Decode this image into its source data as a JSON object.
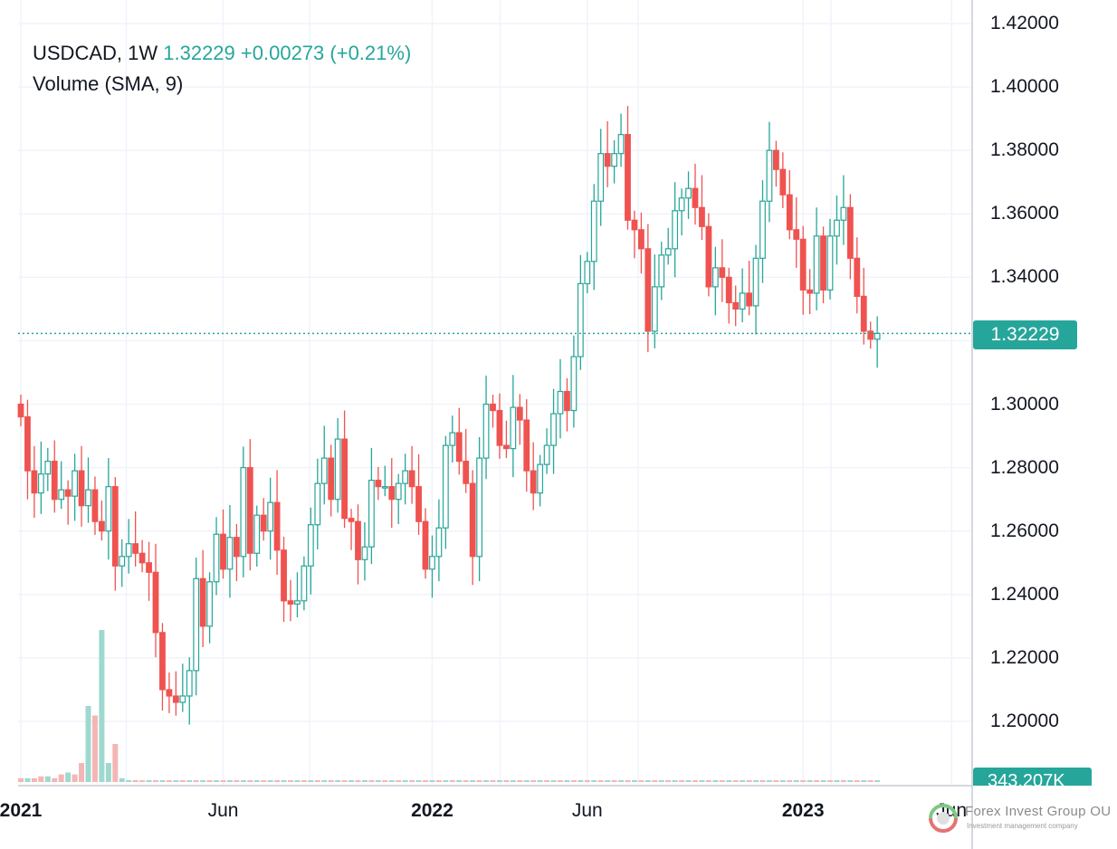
{
  "legend": {
    "symbol": "USDCAD, 1W",
    "last": "1.32229",
    "change": "+0.00273 (+0.21%)",
    "volume_label": "Volume (SMA, 9)"
  },
  "price_badge": "1.32229",
  "volume_badge": "343.207K",
  "watermark": {
    "name": "Forex Invest Group OU",
    "tagline": "Investment management company"
  },
  "colors": {
    "up": "#26a69a",
    "down": "#ef5350",
    "grid": "#f0f3fa",
    "axis": "#787b86"
  },
  "chart_data": {
    "type": "candlestick",
    "title": "USDCAD, 1W",
    "ylim": [
      1.185,
      1.42
    ],
    "yticks": [
      "1.42000",
      "1.40000",
      "1.38000",
      "1.36000",
      "1.34000",
      "1.32000",
      "1.30000",
      "1.28000",
      "1.26000",
      "1.24000",
      "1.22000",
      "1.20000"
    ],
    "ytick_values": [
      1.42,
      1.4,
      1.38,
      1.36,
      1.34,
      1.32,
      1.3,
      1.28,
      1.26,
      1.24,
      1.22,
      1.2
    ],
    "xticks": [
      {
        "label": "2021",
        "week": 0,
        "bold": true
      },
      {
        "label": "Jun",
        "week": 30,
        "bold": false
      },
      {
        "label": "2022",
        "week": 61,
        "bold": true
      },
      {
        "label": "Jun",
        "week": 84,
        "bold": false
      },
      {
        "label": "2023",
        "week": 116,
        "bold": true
      },
      {
        "label": "Jun",
        "week": 138,
        "bold": false
      }
    ],
    "last_price": 1.32229,
    "closes": [
      1.296,
      1.279,
      1.272,
      1.278,
      1.282,
      1.27,
      1.273,
      1.271,
      1.279,
      1.268,
      1.273,
      1.263,
      1.26,
      1.274,
      1.249,
      1.252,
      1.256,
      1.253,
      1.25,
      1.247,
      1.228,
      1.21,
      1.208,
      1.206,
      1.208,
      1.216,
      1.245,
      1.23,
      1.244,
      1.259,
      1.248,
      1.258,
      1.252,
      1.28,
      1.253,
      1.265,
      1.26,
      1.269,
      1.254,
      1.238,
      1.237,
      1.238,
      1.249,
      1.262,
      1.275,
      1.283,
      1.27,
      1.289,
      1.264,
      1.263,
      1.251,
      1.255,
      1.276,
      1.274,
      1.274,
      1.27,
      1.275,
      1.279,
      1.274,
      1.263,
      1.248,
      1.252,
      1.261,
      1.287,
      1.291,
      1.282,
      1.275,
      1.252,
      1.283,
      1.3,
      1.298,
      1.287,
      1.286,
      1.299,
      1.295,
      1.279,
      1.272,
      1.281,
      1.287,
      1.297,
      1.304,
      1.298,
      1.315,
      1.338,
      1.345,
      1.364,
      1.379,
      1.375,
      1.379,
      1.385,
      1.358,
      1.355,
      1.349,
      1.323,
      1.337,
      1.347,
      1.349,
      1.361,
      1.365,
      1.368,
      1.362,
      1.356,
      1.337,
      1.343,
      1.34,
      1.332,
      1.33,
      1.335,
      1.331,
      1.346,
      1.364,
      1.38,
      1.374,
      1.366,
      1.355,
      1.352,
      1.336,
      1.335,
      1.353,
      1.336,
      1.353,
      1.358,
      1.362,
      1.346,
      1.334,
      1.323,
      1.3205,
      1.3223
    ],
    "volume": [
      0.02,
      0.02,
      0.02,
      0.03,
      0.03,
      0.02,
      0.04,
      0.05,
      0.04,
      0.1,
      0.4,
      0.35,
      0.8,
      0.1,
      0.2,
      0.02,
      0.01,
      0.01
    ]
  }
}
